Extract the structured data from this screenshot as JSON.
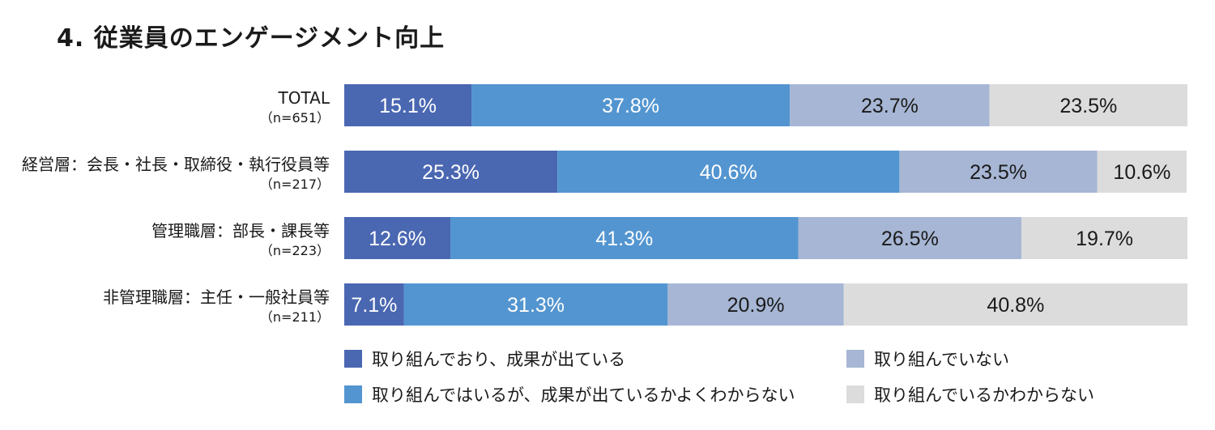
{
  "title": "4. 従業員のエンゲージメント向上",
  "colors": {
    "s1": "#4a67b1",
    "s2": "#5395d0",
    "s3": "#a6b6d4",
    "s4": "#dcdcdc"
  },
  "chart_data": {
    "type": "bar",
    "orientation": "horizontal",
    "stacked": true,
    "percent": true,
    "xlim": [
      0,
      100
    ],
    "categories": [
      {
        "label": "TOTAL",
        "n": "（n=651）"
      },
      {
        "label": "経営層：会長・社長・取締役・執行役員等",
        "n": "（n=217）"
      },
      {
        "label": "管理職層：部長・課長等",
        "n": "（n=223）"
      },
      {
        "label": "非管理職層：主任・一般社員等",
        "n": "（n=211）"
      }
    ],
    "series": [
      {
        "name": "取り組んでおり、成果が出ている",
        "color_key": "s1",
        "text_color": "#ffffff",
        "values": [
          15.1,
          25.3,
          12.6,
          7.1
        ],
        "labels": [
          "15.1%",
          "25.3%",
          "12.6%",
          "7.1%"
        ]
      },
      {
        "name": "取り組んではいるが、成果が出ているかよくわからない",
        "color_key": "s2",
        "text_color": "#ffffff",
        "values": [
          37.8,
          40.6,
          41.3,
          31.3
        ],
        "labels": [
          "37.8%",
          "40.6%",
          "41.3%",
          "31.3%"
        ]
      },
      {
        "name": "取り組んでいない",
        "color_key": "s3",
        "text_color": "#1a1a1a",
        "values": [
          23.7,
          23.5,
          26.5,
          20.9
        ],
        "labels": [
          "23.7%",
          "23.5%",
          "26.5%",
          "20.9%"
        ]
      },
      {
        "name": "取り組んでいるかわからない",
        "color_key": "s4",
        "text_color": "#1a1a1a",
        "values": [
          23.5,
          10.6,
          19.7,
          40.8
        ],
        "labels": [
          "23.5%",
          "10.6%",
          "19.7%",
          "40.8%"
        ]
      }
    ],
    "legend_position": "bottom"
  }
}
